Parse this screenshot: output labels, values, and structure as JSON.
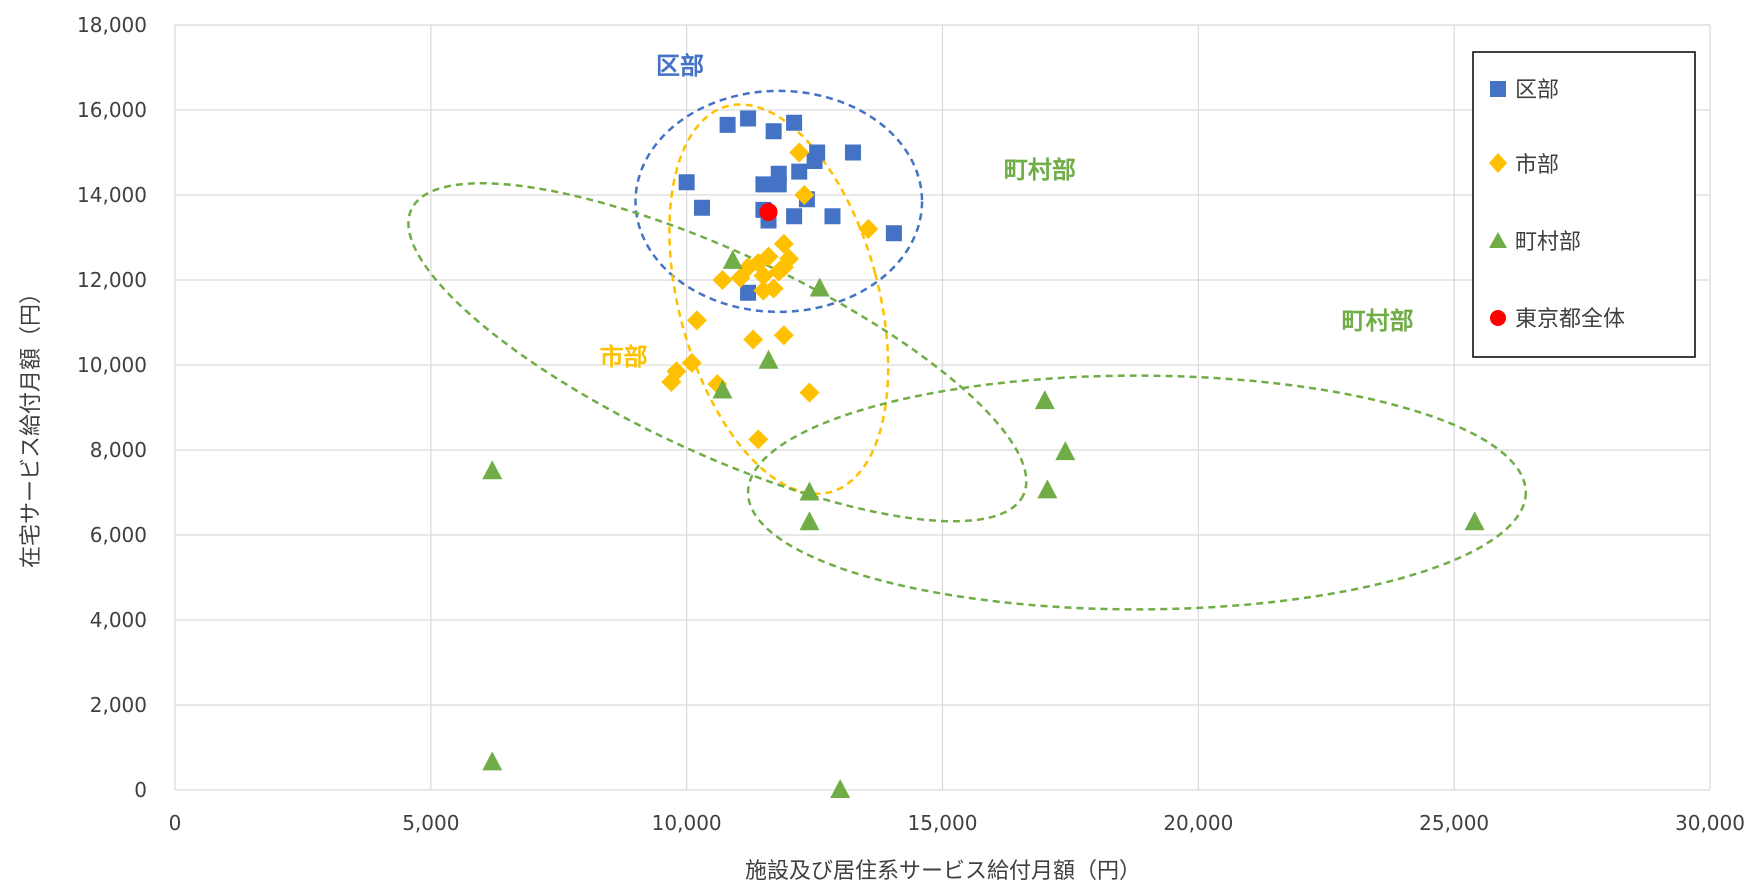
{
  "chart_data": {
    "type": "scatter",
    "xlabel": "施設及び居住系サービス給付月額（円）",
    "ylabel": "在宅サービス給付月額（円）",
    "xlim": [
      0,
      30000
    ],
    "ylim": [
      0,
      18000
    ],
    "x_ticks": [
      0,
      5000,
      10000,
      15000,
      20000,
      25000,
      30000
    ],
    "y_ticks": [
      0,
      2000,
      4000,
      6000,
      8000,
      10000,
      12000,
      14000,
      16000,
      18000
    ],
    "x_tick_labels": [
      "0",
      "5,000",
      "10,000",
      "15,000",
      "20,000",
      "25,000",
      "30,000"
    ],
    "y_tick_labels": [
      "0",
      "2,000",
      "4,000",
      "6,000",
      "8,000",
      "10,000",
      "12,000",
      "14,000",
      "16,000",
      "18,000"
    ],
    "grid": true,
    "legend_position": "top-right",
    "series": [
      {
        "name": "区部",
        "marker": "square",
        "color": "#4472C4",
        "points": [
          [
            10000,
            14300
          ],
          [
            10300,
            13700
          ],
          [
            10800,
            15650
          ],
          [
            11200,
            15800
          ],
          [
            11700,
            15500
          ],
          [
            12100,
            15700
          ],
          [
            11800,
            14500
          ],
          [
            12200,
            14550
          ],
          [
            12500,
            14800
          ],
          [
            12550,
            15000
          ],
          [
            13250,
            15000
          ],
          [
            11500,
            14250
          ],
          [
            11800,
            14250
          ],
          [
            12350,
            13900
          ],
          [
            11500,
            13650
          ],
          [
            11600,
            13400
          ],
          [
            12100,
            13500
          ],
          [
            12850,
            13500
          ],
          [
            14050,
            13100
          ],
          [
            11200,
            11700
          ]
        ]
      },
      {
        "name": "市部",
        "marker": "diamond",
        "color": "#FFC000",
        "points": [
          [
            12200,
            15000
          ],
          [
            12300,
            14000
          ],
          [
            13550,
            13200
          ],
          [
            11900,
            12850
          ],
          [
            12000,
            12500
          ],
          [
            11600,
            12550
          ],
          [
            11400,
            12400
          ],
          [
            11200,
            12300
          ],
          [
            11800,
            12200
          ],
          [
            11050,
            12050
          ],
          [
            10700,
            12000
          ],
          [
            11500,
            12100
          ],
          [
            11900,
            12300
          ],
          [
            11500,
            11750
          ],
          [
            11700,
            11800
          ],
          [
            10200,
            11050
          ],
          [
            11300,
            10600
          ],
          [
            11900,
            10700
          ],
          [
            10100,
            10050
          ],
          [
            9800,
            9850
          ],
          [
            9700,
            9600
          ],
          [
            10600,
            9550
          ],
          [
            12400,
            9350
          ],
          [
            11400,
            8250
          ]
        ]
      },
      {
        "name": "町村部",
        "marker": "triangle",
        "color": "#70AD47",
        "points": [
          [
            10900,
            12450
          ],
          [
            12600,
            11800
          ],
          [
            11600,
            10100
          ],
          [
            10700,
            9400
          ],
          [
            17000,
            9150
          ],
          [
            17400,
            7950
          ],
          [
            17050,
            7050
          ],
          [
            6200,
            7500
          ],
          [
            12400,
            7000
          ],
          [
            12400,
            6300
          ],
          [
            25400,
            6300
          ],
          [
            6200,
            650
          ],
          [
            13000,
            0
          ]
        ]
      },
      {
        "name": "東京都全体",
        "marker": "circle",
        "color": "#FF0000",
        "points": [
          [
            11600,
            13600
          ]
        ]
      }
    ],
    "annotations": [
      {
        "text": "区部",
        "color": "#4472C4",
        "x": 9400,
        "y": 16850
      },
      {
        "text": "町村部",
        "color": "#70AD47",
        "x": 16200,
        "y": 14400
      },
      {
        "text": "町村部",
        "color": "#70AD47",
        "x": 22800,
        "y": 10850
      },
      {
        "text": "市部",
        "color": "#FFC000",
        "x": 8300,
        "y": 10000
      }
    ],
    "ellipses": [
      {
        "color": "#4472C4",
        "cx": 11800,
        "cy": 13850,
        "rx": 2800,
        "ry": 2600,
        "rotation": 0
      },
      {
        "color": "#FFC000",
        "cx": 11800,
        "cy": 11550,
        "rx": 1950,
        "ry": 4700,
        "rotation": 15
      },
      {
        "color": "#70AD47",
        "cx": 10600,
        "cy": 10300,
        "rx": 6600,
        "ry": 2350,
        "rotation": -25
      },
      {
        "color": "#70AD47",
        "cx": 18800,
        "cy": 7000,
        "rx": 7600,
        "ry": 2750,
        "rotation": 0
      }
    ]
  }
}
